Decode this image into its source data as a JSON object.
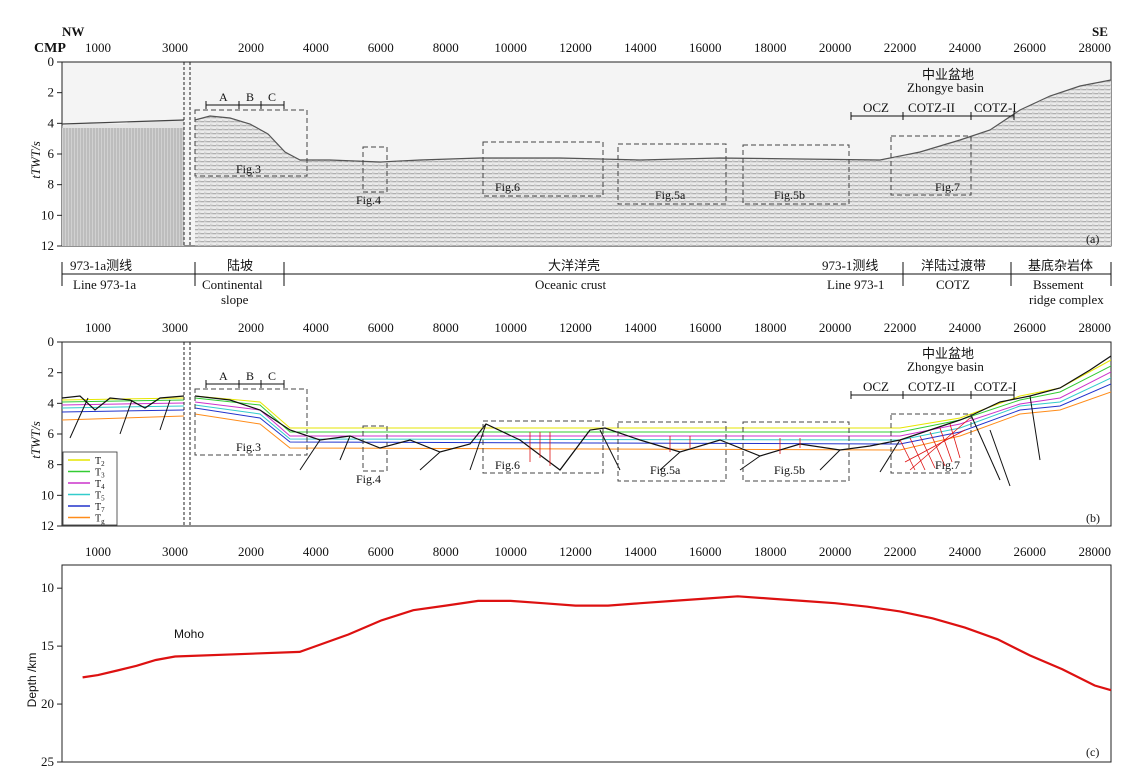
{
  "header": {
    "left_dir": "NW",
    "right_dir": "SE",
    "cmp_label": "CMP"
  },
  "x_ticks_left": [
    "1000",
    "3000"
  ],
  "x_ticks_right": [
    "2000",
    "4000",
    "6000",
    "8000",
    "10000",
    "12000",
    "14000",
    "16000",
    "18000",
    "20000",
    "22000",
    "24000",
    "26000",
    "28000"
  ],
  "twt_ticks": [
    "0",
    "2",
    "4",
    "6",
    "8",
    "10",
    "12"
  ],
  "twt_axis_label": "tTWT/s",
  "panel_a": {
    "letter": "(a)",
    "basin_cn": "中业盆地",
    "basin_en": "Zhongye basin",
    "zones": [
      "OCZ",
      "COTZ-II",
      "COTZ-I"
    ],
    "abc": [
      "A",
      "B",
      "C"
    ],
    "figs": [
      "Fig.3",
      "Fig.4",
      "Fig.6",
      "Fig.5a",
      "Fig.5b",
      "Fig.7"
    ]
  },
  "legend_strip": [
    {
      "cn": "973-1a测线",
      "en": "Line 973-1a"
    },
    {
      "cn": "陆坡",
      "en": "Continental",
      "en2": "slope"
    },
    {
      "cn": "大洋洋壳",
      "en": "Oceanic crust"
    },
    {
      "cn": "973-1测线",
      "en": "Line 973-1"
    },
    {
      "cn": "洋陆过渡带",
      "en": "COTZ"
    },
    {
      "cn": "基底杂岩体",
      "en": "Bssement",
      "en2": "ridge complex"
    }
  ],
  "panel_b": {
    "letter": "(b)",
    "basin_cn": "中业盆地",
    "basin_en": "Zhongye basin",
    "zones": [
      "OCZ",
      "COTZ-II",
      "COTZ-I"
    ],
    "abc": [
      "A",
      "B",
      "C"
    ],
    "figs": [
      "Fig.3",
      "Fig.4",
      "Fig.6",
      "Fig.5a",
      "Fig.5b",
      "Fig.7"
    ],
    "horizons": [
      {
        "name": "T",
        "sub": "2",
        "color": "#e6e600"
      },
      {
        "name": "T",
        "sub": "3",
        "color": "#33cc33"
      },
      {
        "name": "T",
        "sub": "4",
        "color": "#cc33cc"
      },
      {
        "name": "T",
        "sub": "5",
        "color": "#33cccc"
      },
      {
        "name": "T",
        "sub": "7",
        "color": "#2233cc"
      },
      {
        "name": "T",
        "sub": "g",
        "color": "#ff8c1a"
      }
    ]
  },
  "chart_data": [
    {
      "type": "line",
      "title": "",
      "xlabel": "",
      "ylabel": "Depth /km",
      "ylim": [
        8,
        25
      ],
      "y_ticks": [
        "10",
        "15",
        "20",
        "25"
      ],
      "annotation": "Moho",
      "panel_label": "(c)",
      "series": [
        {
          "name": "",
          "color": "#dd1111",
          "x_cmp": [
            600,
            1000,
            1500,
            2000,
            2500,
            3000,
            3500,
            4000,
            5000,
            6000,
            7000,
            8000,
            9000,
            10000,
            11000,
            12000,
            13000,
            14000,
            15000,
            16000,
            17000,
            18000,
            19000,
            20000,
            21000,
            22000,
            23000,
            24000,
            25000,
            26000,
            27000,
            28000,
            28600
          ],
          "y_depth_km": [
            17.7,
            17.5,
            17.1,
            16.7,
            16.2,
            15.9,
            15.5,
            15.0,
            14.0,
            12.8,
            11.9,
            11.5,
            11.1,
            11.1,
            11.3,
            11.5,
            11.5,
            11.3,
            11.1,
            10.9,
            10.7,
            10.9,
            11.1,
            11.3,
            11.6,
            12.0,
            12.6,
            13.4,
            14.4,
            15.8,
            17.0,
            18.4,
            18.8
          ]
        }
      ]
    }
  ]
}
